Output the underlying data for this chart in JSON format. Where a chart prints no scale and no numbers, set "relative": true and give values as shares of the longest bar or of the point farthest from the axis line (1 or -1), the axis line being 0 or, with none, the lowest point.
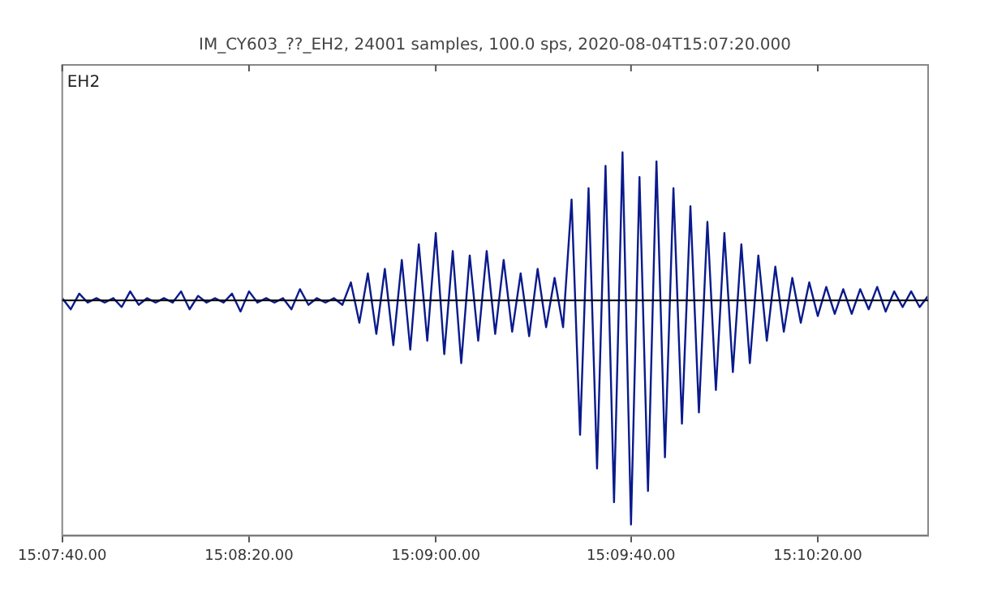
{
  "chart_data": {
    "type": "line",
    "title": "IM_CY603_??_EH2, 24001 samples, 100.0 sps, 2020-08-04T15:07:20.000",
    "annotations": [
      "EH2"
    ],
    "relative": true,
    "grid": false,
    "legend": false,
    "marker": "none",
    "line_style": "solid",
    "categories": [
      "15:07:40.00",
      null,
      null,
      null,
      null,
      null,
      null,
      null,
      null,
      null,
      null,
      null,
      null,
      null,
      null,
      null,
      null,
      null,
      null,
      null,
      null,
      null,
      "15:08:20.00",
      null,
      null,
      null,
      null,
      null,
      null,
      null,
      null,
      null,
      null,
      null,
      null,
      null,
      null,
      null,
      null,
      null,
      null,
      null,
      null,
      null,
      "15:09:00.00",
      null,
      null,
      null,
      null,
      null,
      null,
      null,
      null,
      null,
      null,
      null,
      null,
      null,
      null,
      null,
      null,
      null,
      null,
      null,
      null,
      null,
      null,
      "15:09:40.00",
      null,
      null,
      null,
      null,
      null,
      null,
      null,
      null,
      null,
      null,
      null,
      null,
      null,
      null,
      null,
      null,
      null,
      null,
      null,
      null,
      null,
      "15:10:20.00",
      null,
      null,
      null,
      null,
      null,
      null,
      null,
      null,
      null,
      null,
      null,
      null,
      null
    ],
    "tick_labels": "x",
    "ref_lines": [
      {
        "axis": "y",
        "value": 0,
        "color": "#000000"
      }
    ],
    "series": [
      {
        "color": "#0a1a8c",
        "values": [
          0.01,
          -0.04,
          0.03,
          -0.01,
          0.01,
          -0.01,
          0.01,
          -0.03,
          0.04,
          -0.02,
          0.01,
          -0.01,
          0.01,
          -0.01,
          0.04,
          -0.04,
          0.02,
          -0.01,
          0.01,
          -0.01,
          0.03,
          -0.05,
          0.04,
          -0.01,
          0.01,
          -0.01,
          0.01,
          -0.04,
          0.05,
          -0.02,
          0.01,
          -0.01,
          0.01,
          -0.02,
          0.08,
          -0.1,
          0.12,
          -0.15,
          0.14,
          -0.2,
          0.18,
          -0.22,
          0.25,
          -0.18,
          0.3,
          -0.24,
          0.22,
          -0.28,
          0.2,
          -0.18,
          0.22,
          -0.15,
          0.18,
          -0.14,
          0.12,
          -0.16,
          0.14,
          -0.12,
          0.1,
          -0.12,
          0.45,
          -0.6,
          0.5,
          -0.75,
          0.6,
          -0.9,
          0.66,
          -1,
          0.55,
          -0.85,
          0.62,
          -0.7,
          0.5,
          -0.55,
          0.42,
          -0.5,
          0.35,
          -0.4,
          0.3,
          -0.32,
          0.25,
          -0.28,
          0.2,
          -0.18,
          0.15,
          -0.14,
          0.1,
          -0.1,
          0.08,
          -0.07,
          0.06,
          -0.06,
          0.05,
          -0.06,
          0.05,
          -0.04,
          0.06,
          -0.05,
          0.04,
          -0.03,
          0.04,
          -0.03,
          0.02
        ]
      }
    ]
  }
}
